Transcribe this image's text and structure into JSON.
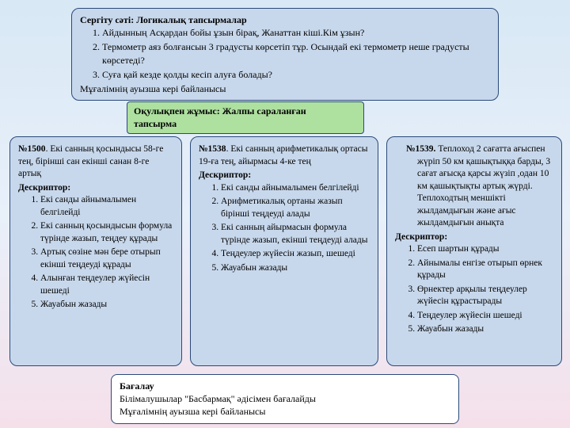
{
  "top": {
    "title": "Сергіту сәті: Логикалық тапсырмалар",
    "items": [
      "Айдынның Асқардан бойы ұзын бірақ, Жанаттан кіші.Кім ұзын?",
      "Термометр аяз болғансын 3 градусты көрсетіп тұр. Осындай екі термометр неше градусты көрсетеді?",
      "Суға қай кезде қолды кесіп алуға болады?"
    ],
    "footer": "Мұғалімнің ауызша кері байланысы"
  },
  "green": {
    "line1": "Оқулықпен жұмыс: Жалпы сараланған",
    "line2": "тапсырма"
  },
  "col1": {
    "num": "№1500",
    "lead": ". Екі санның қосындысы 58-ге тең, бірінші сан екінші санан 8-ге артық",
    "desc_label": "Дескриптор:",
    "items": [
      "Екі санды айнымалымен белгілейді",
      "Екі санның қосындысын формула түрінде жазып, теңдеу құрады",
      "Артық сөзіне мән бере отырып екінші теңдеуді құрады",
      "Алынған теңдеулер жүйесін шешеді",
      "Жауабын жазады"
    ]
  },
  "col2": {
    "num": "№1538",
    "lead": ". Екі санның арифметикалық ортасы 19-ға тең, айырмасы 4-ке тең",
    "desc_label": "Дескриптор:",
    "items": [
      "Екі санды айнымалымен белгілейді",
      "Арифметикалық ортаны жазып бірінші теңдеуді алады",
      "Екі санның айырмасын формула түрінде жазып, екінші теңдеуді алады",
      "Теңдеулер жүйесін жазып, шешеді",
      "Жауабын жазады"
    ]
  },
  "col3": {
    "num": "№1539.",
    "lead": " Теплоход 2 сағатта ағыспен жүріп 50 км  қашықтыққа барды, 3 сағат ағысқа қарсы жүзіп ,одан 10 км қашықтықты артық жүрді. Теплоходтың меншікті жылдамдығын және ағыс жылдамдығын анықта",
    "desc_label": "Дескриптор:",
    "items": [
      "Есеп шартын құрады",
      "Айнымалы енгізе отырып өрнек құрады",
      "Өрнектер арқылы теңдеулер жүйесін құрастырады",
      "Теңдеулер жүйесін шешеді",
      "Жауабын жазады"
    ]
  },
  "bottom": {
    "title": "Бағалау",
    "line1": "Білімалушылар  \"Басбармақ\" әдісімен бағалайды",
    "line2": "Мұғалімнің ауызша кері байланысы"
  }
}
